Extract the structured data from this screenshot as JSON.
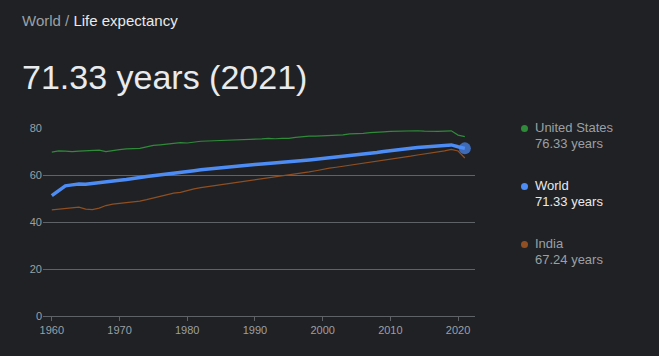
{
  "breadcrumb": {
    "items": [
      "World",
      "Life expectancy"
    ],
    "separator": "/"
  },
  "chart_data": {
    "type": "line",
    "title": "71.33 years (2021)",
    "x": [
      1960,
      1961,
      1962,
      1963,
      1964,
      1965,
      1966,
      1967,
      1968,
      1969,
      1970,
      1971,
      1972,
      1973,
      1974,
      1975,
      1976,
      1977,
      1978,
      1979,
      1980,
      1981,
      1982,
      1983,
      1984,
      1985,
      1986,
      1987,
      1988,
      1989,
      1990,
      1991,
      1992,
      1993,
      1994,
      1995,
      1996,
      1997,
      1998,
      1999,
      2000,
      2001,
      2002,
      2003,
      2004,
      2005,
      2006,
      2007,
      2008,
      2009,
      2010,
      2011,
      2012,
      2013,
      2014,
      2015,
      2016,
      2017,
      2018,
      2019,
      2020,
      2021
    ],
    "series": [
      {
        "name": "United States",
        "latest_label": "76.33 years",
        "color": "#2f8a3a",
        "values": [
          69.77,
          70.27,
          70.12,
          69.92,
          70.17,
          70.21,
          70.21,
          70.56,
          69.95,
          70.51,
          70.81,
          71.11,
          71.16,
          71.36,
          71.96,
          72.6,
          72.86,
          73.26,
          73.36,
          73.8,
          73.61,
          74.01,
          74.36,
          74.46,
          74.56,
          74.56,
          74.61,
          74.77,
          74.77,
          75.02,
          75.21,
          75.37,
          75.62,
          75.42,
          75.62,
          75.62,
          76.03,
          76.43,
          76.58,
          76.58,
          76.64,
          76.84,
          76.94,
          77.04,
          77.49,
          77.49,
          77.69,
          77.99,
          78.04,
          78.39,
          78.54,
          78.64,
          78.74,
          78.74,
          78.84,
          78.69,
          78.54,
          78.54,
          78.64,
          78.79,
          76.98,
          76.33
        ]
      },
      {
        "name": "World",
        "latest_label": "71.33 years",
        "color": "#4d8cf5",
        "marker": "last",
        "line_style": "bold",
        "values": [
          51.2,
          53.1,
          55.4,
          55.8,
          56.2,
          56.1,
          56.5,
          56.9,
          57.2,
          57.5,
          57.8,
          58.1,
          58.4,
          58.9,
          59.4,
          59.7,
          60.1,
          60.5,
          60.8,
          61.1,
          61.4,
          61.8,
          62.2,
          62.5,
          62.8,
          63.1,
          63.5,
          63.9,
          64.2,
          64.4,
          64.5,
          64.7,
          64.9,
          65.1,
          65.3,
          65.5,
          65.8,
          66.1,
          66.4,
          66.7,
          67.0,
          67.3,
          67.5,
          67.8,
          68.1,
          68.5,
          68.9,
          69.3,
          69.6,
          70.0,
          70.4,
          70.8,
          71.1,
          71.4,
          71.7,
          71.9,
          72.2,
          72.4,
          72.6,
          72.8,
          72.0,
          71.33
        ]
      },
      {
        "name": "India",
        "latest_label": "67.24 years",
        "color": "#8f4f22",
        "values": [
          45.2,
          45.4,
          45.7,
          46.0,
          46.3,
          45.5,
          45.3,
          45.9,
          47.0,
          47.6,
          47.9,
          48.2,
          48.4,
          48.9,
          49.5,
          50.2,
          50.9,
          51.6,
          52.3,
          52.6,
          53.5,
          54.1,
          54.6,
          55.0,
          55.4,
          55.8,
          56.2,
          56.7,
          57.1,
          57.6,
          58.1,
          58.5,
          58.9,
          59.3,
          59.7,
          60.1,
          60.5,
          60.9,
          61.3,
          61.8,
          62.5,
          62.9,
          63.3,
          63.7,
          64.1,
          64.6,
          65.1,
          65.6,
          66.0,
          66.4,
          66.7,
          67.1,
          67.6,
          68.0,
          68.5,
          68.9,
          69.4,
          69.9,
          70.3,
          70.9,
          70.2,
          67.24
        ]
      }
    ],
    "xlim": [
      1958.7,
      2022.5
    ],
    "xticks": [
      1960,
      1970,
      1980,
      1990,
      2000,
      2010,
      2020
    ],
    "ylim": [
      0,
      80
    ],
    "yticks": [
      0,
      20,
      40,
      60,
      80
    ],
    "grid": true,
    "legend": "right"
  }
}
